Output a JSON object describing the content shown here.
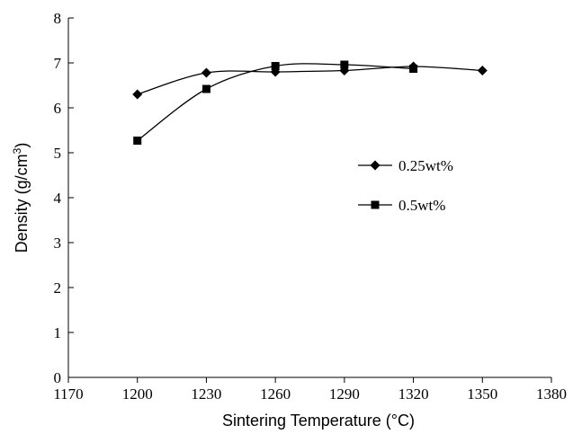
{
  "chart_data": {
    "type": "line",
    "xlabel": "Sintering Temperature (°C)",
    "ylabel": {
      "main": "Density (g/cm",
      "sup": "3",
      "close": ")"
    },
    "xlim": [
      1170,
      1380
    ],
    "ylim": [
      0,
      8
    ],
    "xticks": [
      1170,
      1200,
      1230,
      1260,
      1290,
      1320,
      1350,
      1380
    ],
    "yticks": [
      0,
      1,
      2,
      3,
      4,
      5,
      6,
      7,
      8
    ],
    "grid": false,
    "legend_position": "right-middle",
    "series": [
      {
        "name": "0.25wt%",
        "marker": "diamond",
        "color": "#000000",
        "x": [
          1200,
          1230,
          1260,
          1290,
          1320,
          1350
        ],
        "y": [
          6.3,
          6.78,
          6.8,
          6.83,
          6.92,
          6.83
        ]
      },
      {
        "name": "0.5wt%",
        "marker": "square",
        "color": "#000000",
        "x": [
          1200,
          1230,
          1260,
          1290,
          1320
        ],
        "y": [
          5.27,
          6.42,
          6.93,
          6.96,
          6.87
        ]
      }
    ]
  }
}
